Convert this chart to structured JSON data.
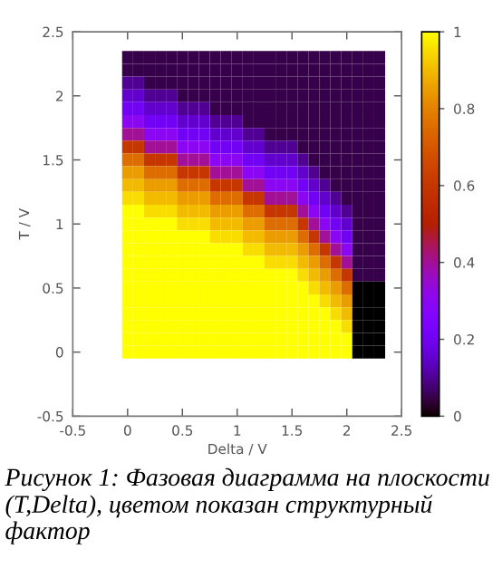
{
  "chart_data": {
    "type": "heatmap",
    "xlabel": "Delta / V",
    "ylabel": "T / V",
    "x": [
      0,
      0.1,
      0.2,
      0.3,
      0.4,
      0.5,
      0.6,
      0.7,
      0.8,
      0.9,
      1.0,
      1.1,
      1.2,
      1.3,
      1.4,
      1.5,
      1.6,
      1.7,
      1.8,
      1.9,
      2.0,
      2.1,
      2.2,
      2.3
    ],
    "y": [
      2.3,
      2.2,
      2.1,
      2.0,
      1.9,
      1.8,
      1.7,
      1.6,
      1.5,
      1.4,
      1.3,
      1.2,
      1.1,
      1.0,
      0.9,
      0.8,
      0.7,
      0.6,
      0.5,
      0.4,
      0.3,
      0.2,
      0.1,
      0
    ],
    "cells": [
      [
        0.05,
        0.05,
        0.05,
        0.05,
        0.05,
        0.05,
        0.05,
        0.05,
        0.05,
        0.05,
        0.05,
        0.05,
        0.05,
        0.05,
        0.05,
        0.05,
        0.05,
        0.05,
        0.05,
        0.05,
        0.05,
        0.05,
        0.05,
        0.05
      ],
      [
        0.05,
        0.05,
        0.05,
        0.05,
        0.05,
        0.05,
        0.05,
        0.05,
        0.05,
        0.05,
        0.05,
        0.05,
        0.05,
        0.05,
        0.05,
        0.05,
        0.05,
        0.05,
        0.05,
        0.05,
        0.05,
        0.05,
        0.05,
        0.05
      ],
      [
        0.1,
        0.1,
        0.05,
        0.05,
        0.05,
        0.05,
        0.05,
        0.05,
        0.05,
        0.05,
        0.05,
        0.05,
        0.05,
        0.05,
        0.05,
        0.05,
        0.05,
        0.05,
        0.05,
        0.05,
        0.05,
        0.05,
        0.05,
        0.05
      ],
      [
        0.15,
        0.15,
        0.1,
        0.1,
        0.1,
        0.05,
        0.05,
        0.05,
        0.05,
        0.05,
        0.05,
        0.05,
        0.05,
        0.05,
        0.05,
        0.05,
        0.05,
        0.05,
        0.05,
        0.05,
        0.05,
        0.05,
        0.05,
        0.05
      ],
      [
        0.2,
        0.2,
        0.15,
        0.15,
        0.15,
        0.1,
        0.1,
        0.1,
        0.05,
        0.05,
        0.05,
        0.05,
        0.05,
        0.05,
        0.05,
        0.05,
        0.05,
        0.05,
        0.05,
        0.05,
        0.05,
        0.05,
        0.05,
        0.05
      ],
      [
        0.3,
        0.3,
        0.2,
        0.2,
        0.2,
        0.15,
        0.15,
        0.15,
        0.1,
        0.1,
        0.1,
        0.05,
        0.05,
        0.05,
        0.05,
        0.05,
        0.05,
        0.05,
        0.05,
        0.05,
        0.05,
        0.05,
        0.05,
        0.05
      ],
      [
        0.4,
        0.4,
        0.3,
        0.3,
        0.3,
        0.2,
        0.2,
        0.2,
        0.15,
        0.15,
        0.15,
        0.1,
        0.1,
        0.05,
        0.05,
        0.05,
        0.05,
        0.05,
        0.05,
        0.05,
        0.05,
        0.05,
        0.05,
        0.05
      ],
      [
        0.6,
        0.6,
        0.4,
        0.4,
        0.4,
        0.3,
        0.3,
        0.3,
        0.2,
        0.2,
        0.2,
        0.15,
        0.15,
        0.1,
        0.1,
        0.1,
        0.05,
        0.05,
        0.05,
        0.05,
        0.05,
        0.05,
        0.05,
        0.05
      ],
      [
        0.75,
        0.75,
        0.6,
        0.6,
        0.6,
        0.4,
        0.4,
        0.4,
        0.3,
        0.3,
        0.3,
        0.2,
        0.2,
        0.15,
        0.15,
        0.15,
        0.1,
        0.05,
        0.05,
        0.05,
        0.05,
        0.05,
        0.05,
        0.05
      ],
      [
        0.85,
        0.85,
        0.75,
        0.75,
        0.75,
        0.6,
        0.6,
        0.6,
        0.4,
        0.4,
        0.4,
        0.3,
        0.3,
        0.2,
        0.2,
        0.2,
        0.15,
        0.1,
        0.05,
        0.05,
        0.05,
        0.05,
        0.05,
        0.05
      ],
      [
        0.9,
        0.9,
        0.85,
        0.85,
        0.85,
        0.75,
        0.75,
        0.75,
        0.6,
        0.6,
        0.6,
        0.4,
        0.4,
        0.3,
        0.3,
        0.3,
        0.2,
        0.15,
        0.1,
        0.05,
        0.05,
        0.05,
        0.05,
        0.05
      ],
      [
        0.95,
        0.95,
        0.9,
        0.9,
        0.9,
        0.85,
        0.85,
        0.85,
        0.75,
        0.75,
        0.75,
        0.6,
        0.6,
        0.4,
        0.4,
        0.4,
        0.3,
        0.2,
        0.15,
        0.1,
        0.05,
        0.05,
        0.05,
        0.05
      ],
      [
        1,
        1,
        0.95,
        0.95,
        0.95,
        0.9,
        0.9,
        0.9,
        0.85,
        0.85,
        0.85,
        0.75,
        0.75,
        0.6,
        0.6,
        0.6,
        0.4,
        0.3,
        0.2,
        0.15,
        0.1,
        0.05,
        0.05,
        0.05
      ],
      [
        1,
        1,
        1,
        1,
        1,
        0.95,
        0.95,
        0.95,
        0.9,
        0.9,
        0.9,
        0.85,
        0.85,
        0.75,
        0.75,
        0.75,
        0.6,
        0.4,
        0.3,
        0.2,
        0.15,
        0.05,
        0.05,
        0.05
      ],
      [
        1,
        1,
        1,
        1,
        1,
        1,
        1,
        1,
        0.95,
        0.95,
        0.95,
        0.9,
        0.9,
        0.85,
        0.85,
        0.85,
        0.75,
        0.6,
        0.4,
        0.3,
        0.2,
        0.05,
        0.05,
        0.05
      ],
      [
        1,
        1,
        1,
        1,
        1,
        1,
        1,
        1,
        1,
        1,
        1,
        0.95,
        0.95,
        0.9,
        0.9,
        0.9,
        0.85,
        0.75,
        0.6,
        0.4,
        0.3,
        0.05,
        0.05,
        0.05
      ],
      [
        1,
        1,
        1,
        1,
        1,
        1,
        1,
        1,
        1,
        1,
        1,
        1,
        1,
        0.95,
        0.95,
        0.95,
        0.9,
        0.85,
        0.75,
        0.6,
        0.4,
        0.05,
        0.05,
        0.05
      ],
      [
        1,
        1,
        1,
        1,
        1,
        1,
        1,
        1,
        1,
        1,
        1,
        1,
        1,
        1,
        1,
        1,
        0.95,
        0.9,
        0.85,
        0.75,
        0.6,
        0.05,
        0.05,
        0.05
      ],
      [
        1,
        1,
        1,
        1,
        1,
        1,
        1,
        1,
        1,
        1,
        1,
        1,
        1,
        1,
        1,
        1,
        1,
        0.95,
        0.9,
        0.85,
        0.75,
        0,
        0,
        0
      ],
      [
        1,
        1,
        1,
        1,
        1,
        1,
        1,
        1,
        1,
        1,
        1,
        1,
        1,
        1,
        1,
        1,
        1,
        1,
        0.95,
        0.9,
        0.85,
        0,
        0,
        0
      ],
      [
        1,
        1,
        1,
        1,
        1,
        1,
        1,
        1,
        1,
        1,
        1,
        1,
        1,
        1,
        1,
        1,
        1,
        1,
        1,
        0.95,
        0.9,
        0,
        0,
        0
      ],
      [
        1,
        1,
        1,
        1,
        1,
        1,
        1,
        1,
        1,
        1,
        1,
        1,
        1,
        1,
        1,
        1,
        1,
        1,
        1,
        1,
        0.95,
        0,
        0,
        0
      ],
      [
        1,
        1,
        1,
        1,
        1,
        1,
        1,
        1,
        1,
        1,
        1,
        1,
        1,
        1,
        1,
        1,
        1,
        1,
        1,
        1,
        1,
        0,
        0,
        0
      ],
      [
        1,
        1,
        1,
        1,
        1,
        1,
        1,
        1,
        1,
        1,
        1,
        1,
        1,
        1,
        1,
        1,
        1,
        1,
        1,
        1,
        1,
        0,
        0,
        0
      ]
    ],
    "xlim": [
      -0.5,
      2.5
    ],
    "ylim": [
      -0.5,
      2.5
    ],
    "xticks": [
      -0.5,
      0,
      0.5,
      1,
      1.5,
      2,
      2.5
    ],
    "yticks": [
      -0.5,
      0,
      0.5,
      1,
      1.5,
      2,
      2.5
    ],
    "clim": [
      0,
      1
    ],
    "cticks": [
      0,
      0.2,
      0.4,
      0.6,
      0.8,
      1
    ],
    "annotations": [
      "Рисунок 1: Фазовая диаграмма на плоскости (T,Delta), цветом показан структурный фактор"
    ]
  }
}
